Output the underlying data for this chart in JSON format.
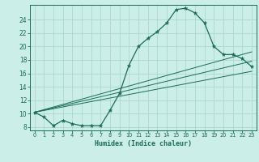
{
  "xlabel": "Humidex (Indice chaleur)",
  "bg_color": "#cceee8",
  "grid_color": "#aad8d0",
  "line_color": "#1a6b5a",
  "xlim": [
    -0.5,
    23.5
  ],
  "ylim": [
    7.5,
    26.2
  ],
  "xticks": [
    0,
    1,
    2,
    3,
    4,
    5,
    6,
    7,
    8,
    9,
    10,
    11,
    12,
    13,
    14,
    15,
    16,
    17,
    18,
    19,
    20,
    21,
    22,
    23
  ],
  "yticks": [
    8,
    10,
    12,
    14,
    16,
    18,
    20,
    22,
    24
  ],
  "main_x": [
    0,
    1,
    2,
    3,
    4,
    5,
    6,
    7,
    8,
    9,
    10,
    11,
    12,
    13,
    14,
    15,
    16,
    17,
    18,
    19,
    20,
    21,
    22,
    23
  ],
  "main_y": [
    10.2,
    9.5,
    8.2,
    9.0,
    8.5,
    8.2,
    8.2,
    8.2,
    10.5,
    13.0,
    17.2,
    20.0,
    21.2,
    22.2,
    23.5,
    25.5,
    25.7,
    25.0,
    23.5,
    20.0,
    18.8,
    18.8,
    18.2,
    17.0
  ],
  "line2_x": [
    0,
    23
  ],
  "line2_y": [
    10.2,
    16.3
  ],
  "line3_x": [
    0,
    23
  ],
  "line3_y": [
    10.2,
    17.8
  ],
  "line4_x": [
    0,
    23
  ],
  "line4_y": [
    10.2,
    19.2
  ]
}
